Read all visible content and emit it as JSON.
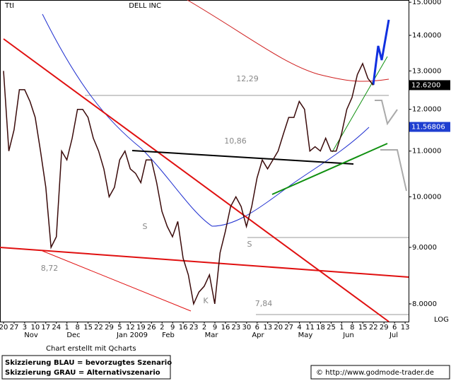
{
  "chart_data": {
    "type": "line",
    "symbol": "TtI",
    "title": "DELL INC",
    "x_labels": [
      "20",
      "27",
      "3",
      "10",
      "17",
      "24",
      "1",
      "8",
      "15",
      "22",
      "29",
      "5",
      "12",
      "19",
      "26",
      "2",
      "9",
      "16",
      "23",
      "2",
      "9",
      "16",
      "23",
      "30",
      "6",
      "13",
      "20",
      "27",
      "4",
      "11",
      "18",
      "25",
      "1",
      "8",
      "15",
      "22",
      "29",
      "6",
      "13"
    ],
    "months": [
      "Nov",
      "Dec",
      "Jan 2009",
      "Feb",
      "Mar",
      "Apr",
      "May",
      "Jun",
      "Jul"
    ],
    "series": [
      {
        "name": "DELL INC",
        "color": "#3a0a0a",
        "values": [
          13.0,
          11.0,
          11.5,
          12.5,
          12.5,
          12.2,
          11.8,
          11.0,
          10.2,
          9.0,
          9.2,
          11.0,
          10.8,
          11.3,
          12.0,
          12.0,
          11.8,
          11.3,
          11.0,
          10.6,
          10.0,
          10.2,
          10.8,
          11.0,
          10.6,
          10.5,
          10.3,
          10.8,
          10.8,
          10.3,
          9.7,
          9.4,
          9.2,
          9.5,
          8.8,
          8.5,
          8.0,
          8.2,
          8.3,
          8.5,
          8.0,
          8.9,
          9.3,
          9.8,
          10.0,
          9.8,
          9.4,
          9.8,
          10.4,
          10.8,
          10.6,
          10.8,
          11.0,
          11.4,
          11.8,
          11.8,
          12.2,
          12.0,
          11.0,
          11.1,
          11.0,
          11.3,
          11.0,
          11.0,
          11.4,
          12.0,
          12.3,
          12.9,
          13.2,
          12.8,
          12.62
        ]
      }
    ],
    "log_scale": true,
    "scale_label": "LOG",
    "ylim": [
      7.71,
      15.07
    ],
    "yticks": [
      {
        "value": 8,
        "label": "8.0000"
      },
      {
        "value": 9,
        "label": "9.0000"
      },
      {
        "value": 10,
        "label": "10.0000"
      },
      {
        "value": 11,
        "label": "11.0000"
      },
      {
        "value": 12,
        "label": "12.0000"
      },
      {
        "value": 13,
        "label": "13.0000"
      },
      {
        "value": 14,
        "label": "14.0000"
      },
      {
        "value": 15,
        "label": "15.0000"
      }
    ],
    "price_labels": [
      {
        "value": 12.62,
        "label": "12.6200",
        "color": "#000000"
      },
      {
        "value": 11.56806,
        "label": "11.56806",
        "color": "#1f3fd0"
      }
    ],
    "annotations": [
      "12,29",
      "10,86",
      "8,72",
      "7,84",
      "S",
      "S",
      "K"
    ],
    "credit": "Chart erstellt mit Qcharts",
    "legend_notes": [
      "Skizzierung BLAU = bevorzugtes Szenario",
      "Skizzierung GRAU = Alternativszenario"
    ],
    "source": "© http://www.godmode-trader.de"
  }
}
